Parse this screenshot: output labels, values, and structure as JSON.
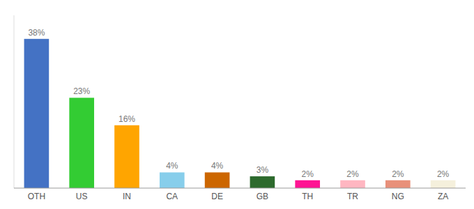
{
  "chart_data": {
    "type": "bar",
    "categories": [
      "OTH",
      "US",
      "IN",
      "CA",
      "DE",
      "GB",
      "TH",
      "TR",
      "NG",
      "ZA"
    ],
    "values": [
      38,
      23,
      16,
      4,
      4,
      3,
      2,
      2,
      2,
      2
    ],
    "value_labels": [
      "38%",
      "23%",
      "16%",
      "4%",
      "4%",
      "3%",
      "2%",
      "2%",
      "2%",
      "2%"
    ],
    "colors": [
      "#4472C4",
      "#33CC33",
      "#FFA500",
      "#87CEEB",
      "#CC6600",
      "#2D6A2D",
      "#FF1493",
      "#FFB6C1",
      "#E8907A",
      "#F5F0DC"
    ],
    "ylim": [
      0,
      44
    ],
    "data_labels": true,
    "tick_labels": "x"
  }
}
